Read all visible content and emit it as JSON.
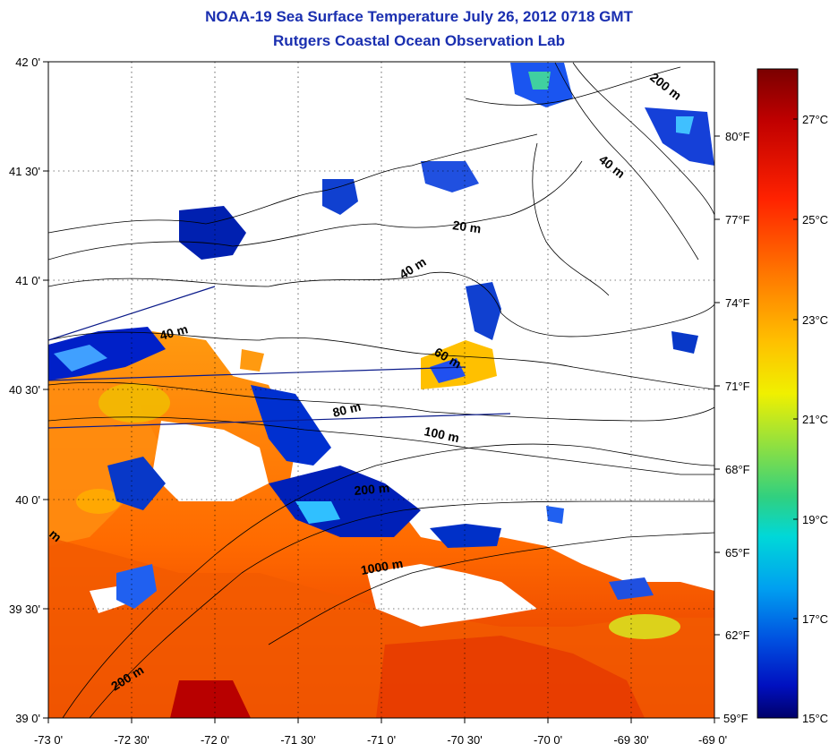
{
  "title": {
    "line1": "NOAA-19 Sea Surface Temperature July 26, 2012 0718 GMT",
    "line2": "Rutgers Coastal Ocean Observation Lab"
  },
  "axes": {
    "longitude_ticks": [
      "-73 0'",
      "-72 30'",
      "-72 0'",
      "-71 30'",
      "-71 0'",
      "-70 30'",
      "-70 0'",
      "-69 30'",
      "-69 0'"
    ],
    "latitude_ticks": [
      "42 0'",
      "41 30'",
      "41 0'",
      "40 30'",
      "40 0'",
      "39 30'",
      "39 0'"
    ]
  },
  "contours": {
    "labels": [
      "200 m",
      "40 m",
      "20 m",
      "40 m",
      "40 m",
      "60 m",
      "80 m",
      "100 m",
      "200 m",
      "1000 m",
      "200 m",
      "m"
    ]
  },
  "colorbar": {
    "celsius": [
      "27°C",
      "25°C",
      "23°C",
      "21°C",
      "19°C",
      "17°C",
      "15°C"
    ],
    "fahrenheit": [
      "80°F",
      "77°F",
      "74°F",
      "71°F",
      "68°F",
      "65°F",
      "62°F",
      "59°F"
    ],
    "gradient": [
      "#7a0000",
      "#c00000",
      "#ff2200",
      "#ff7a00",
      "#ffc000",
      "#f0f000",
      "#90e040",
      "#30d080",
      "#00d8d8",
      "#00a0f0",
      "#0050e0",
      "#0010c0",
      "#00006a"
    ]
  }
}
